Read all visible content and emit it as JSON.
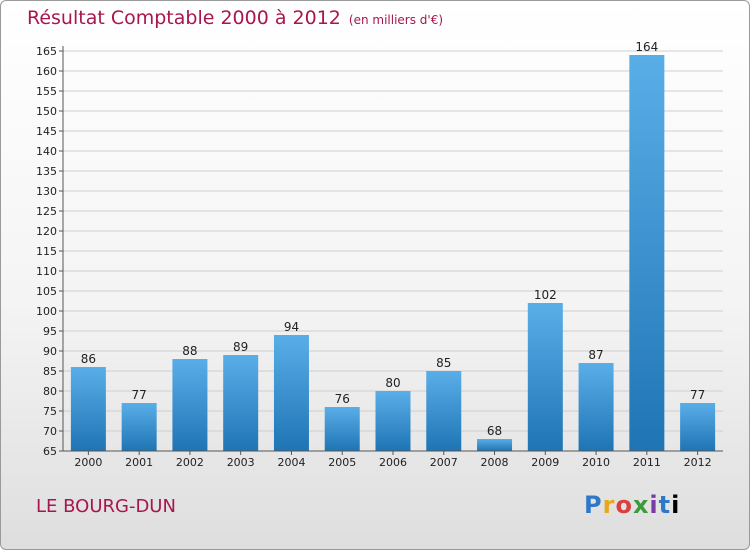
{
  "title": "Résultat Comptable 2000 à 2012",
  "subtitle": "(en milliers d'€)",
  "footer": {
    "town": "LE BOURG-DUN",
    "logo": "Proxiti"
  },
  "colors": {
    "bar_light": "#5aaee8",
    "bar_dark": "#1f74b4",
    "title": "#a8164f",
    "grid": "#cfcfcf"
  },
  "chart_data": {
    "type": "bar",
    "title": "Résultat Comptable 2000 à 2012",
    "xlabel": "",
    "ylabel": "",
    "ylim": [
      65,
      165
    ],
    "ytick_step": 5,
    "grid": true,
    "categories": [
      "2000",
      "2001",
      "2002",
      "2003",
      "2004",
      "2005",
      "2006",
      "2007",
      "2008",
      "2009",
      "2010",
      "2011",
      "2012"
    ],
    "values": [
      86,
      77,
      88,
      89,
      94,
      76,
      80,
      85,
      68,
      102,
      87,
      164,
      77
    ]
  }
}
